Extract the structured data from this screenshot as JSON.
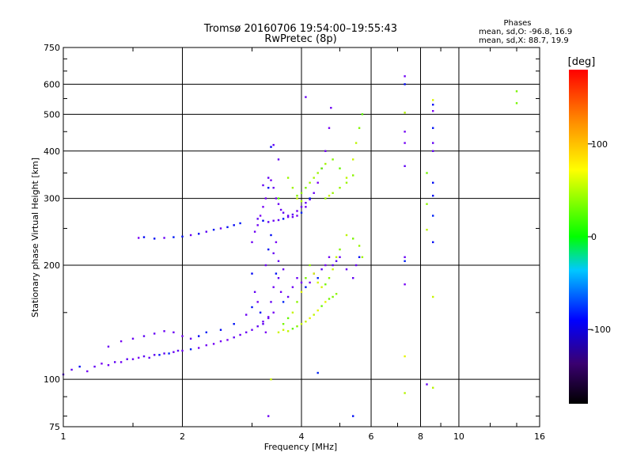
{
  "chart_data": {
    "type": "scatter",
    "title": "Tromsø 20160706 19:54:00–19:55:43",
    "subtitle": "RwPretec (8p)",
    "xlabel": "Frequency [MHz]",
    "ylabel": "Stationary phase Virtual Height [km]",
    "x_scale": "log",
    "y_scale": "log",
    "xlim": [
      1,
      16
    ],
    "ylim": [
      75,
      750
    ],
    "x_ticks": [
      1,
      2,
      4,
      6,
      8,
      10,
      16
    ],
    "x_tick_labels": [
      "1",
      "2",
      "4",
      "6",
      "8",
      "10",
      "16"
    ],
    "y_ticks": [
      75,
      100,
      200,
      300,
      400,
      500,
      600,
      750
    ],
    "y_tick_labels": [
      "75",
      "100",
      "200",
      "300",
      "400",
      "500",
      "600",
      "750"
    ],
    "grid": true,
    "colorbar": {
      "label": "[deg]",
      "range": [
        -180,
        180
      ],
      "ticks": [
        100,
        0,
        -100
      ],
      "tick_labels": [
        "100",
        "0",
        "-100"
      ],
      "colors": [
        "#000000",
        "#3a0070",
        "#0000ff",
        "#00c8ff",
        "#00ff00",
        "#ffff00",
        "#ff8800",
        "#ff0000"
      ]
    },
    "legend": {
      "heading": "Phases",
      "line1": "mean, sd,O: -96.8, 16.9",
      "line2": "mean, sd,X: 88.7, 19.9",
      "position": "top-right"
    },
    "series": [
      {
        "name": "O",
        "phase": -96.8,
        "phase_sd": 16.9,
        "points": [
          [
            1.0,
            103
          ],
          [
            1.05,
            106
          ],
          [
            1.1,
            108
          ],
          [
            1.15,
            105
          ],
          [
            1.2,
            108
          ],
          [
            1.25,
            110
          ],
          [
            1.3,
            109
          ],
          [
            1.35,
            111
          ],
          [
            1.4,
            111
          ],
          [
            1.45,
            113
          ],
          [
            1.5,
            113
          ],
          [
            1.55,
            114
          ],
          [
            1.6,
            115
          ],
          [
            1.65,
            114
          ],
          [
            1.7,
            116
          ],
          [
            1.75,
            116
          ],
          [
            1.8,
            117
          ],
          [
            1.85,
            117
          ],
          [
            1.9,
            118
          ],
          [
            1.95,
            119
          ],
          [
            2.0,
            119
          ],
          [
            2.1,
            120
          ],
          [
            2.2,
            121
          ],
          [
            2.3,
            123
          ],
          [
            2.4,
            124
          ],
          [
            2.5,
            126
          ],
          [
            2.6,
            127
          ],
          [
            2.7,
            129
          ],
          [
            2.8,
            131
          ],
          [
            2.9,
            133
          ],
          [
            3.0,
            135
          ],
          [
            3.1,
            138
          ],
          [
            3.2,
            142
          ],
          [
            3.3,
            146
          ],
          [
            3.4,
            150
          ],
          [
            1.3,
            122
          ],
          [
            1.4,
            126
          ],
          [
            1.5,
            128
          ],
          [
            1.6,
            130
          ],
          [
            1.7,
            132
          ],
          [
            1.8,
            134
          ],
          [
            1.9,
            133
          ],
          [
            2.0,
            130
          ],
          [
            2.1,
            128
          ],
          [
            2.2,
            130
          ],
          [
            2.3,
            133
          ],
          [
            2.5,
            135
          ],
          [
            2.7,
            140
          ],
          [
            2.9,
            148
          ],
          [
            3.0,
            155
          ],
          [
            1.55,
            236
          ],
          [
            1.6,
            237
          ],
          [
            1.7,
            235
          ],
          [
            1.8,
            236
          ],
          [
            1.9,
            237
          ],
          [
            2.0,
            238
          ],
          [
            2.1,
            240
          ],
          [
            2.2,
            242
          ],
          [
            2.3,
            245
          ],
          [
            2.4,
            248
          ],
          [
            2.5,
            250
          ],
          [
            2.6,
            252
          ],
          [
            2.7,
            255
          ],
          [
            2.8,
            258
          ],
          [
            3.0,
            230
          ],
          [
            3.05,
            245
          ],
          [
            3.1,
            255
          ],
          [
            3.15,
            270
          ],
          [
            3.2,
            285
          ],
          [
            3.25,
            300
          ],
          [
            3.3,
            320
          ],
          [
            3.35,
            335
          ],
          [
            3.4,
            320
          ],
          [
            3.45,
            300
          ],
          [
            3.5,
            290
          ],
          [
            3.55,
            280
          ],
          [
            3.6,
            275
          ],
          [
            3.7,
            270
          ],
          [
            3.8,
            268
          ],
          [
            3.9,
            270
          ],
          [
            4.0,
            275
          ],
          [
            4.1,
            285
          ],
          [
            4.2,
            298
          ],
          [
            4.3,
            310
          ],
          [
            4.4,
            330
          ],
          [
            4.5,
            360
          ],
          [
            4.6,
            400
          ],
          [
            4.7,
            460
          ],
          [
            4.75,
            520
          ],
          [
            3.1,
            265
          ],
          [
            3.2,
            262
          ],
          [
            3.3,
            260
          ],
          [
            3.4,
            262
          ],
          [
            3.5,
            263
          ],
          [
            3.6,
            265
          ],
          [
            3.7,
            268
          ],
          [
            3.8,
            272
          ],
          [
            3.9,
            278
          ],
          [
            4.0,
            285
          ],
          [
            4.1,
            292
          ],
          [
            4.2,
            300
          ],
          [
            3.0,
            190
          ],
          [
            3.05,
            170
          ],
          [
            3.1,
            160
          ],
          [
            3.15,
            150
          ],
          [
            3.2,
            140
          ],
          [
            3.25,
            133
          ],
          [
            3.3,
            145
          ],
          [
            3.35,
            160
          ],
          [
            3.4,
            175
          ],
          [
            3.45,
            190
          ],
          [
            3.5,
            185
          ],
          [
            3.55,
            170
          ],
          [
            3.6,
            160
          ],
          [
            3.7,
            165
          ],
          [
            3.8,
            175
          ],
          [
            3.9,
            185
          ],
          [
            4.0,
            180
          ],
          [
            4.1,
            175
          ],
          [
            4.2,
            180
          ],
          [
            4.3,
            190
          ],
          [
            4.4,
            185
          ],
          [
            4.5,
            195
          ],
          [
            4.6,
            200
          ],
          [
            4.7,
            210
          ],
          [
            4.8,
            200
          ],
          [
            4.9,
            205
          ],
          [
            5.0,
            210
          ],
          [
            5.2,
            195
          ],
          [
            5.4,
            185
          ],
          [
            5.5,
            200
          ],
          [
            5.6,
            210
          ],
          [
            3.25,
            200
          ],
          [
            3.3,
            220
          ],
          [
            3.35,
            240
          ],
          [
            3.4,
            215
          ],
          [
            3.45,
            230
          ],
          [
            3.5,
            205
          ],
          [
            3.6,
            195
          ],
          [
            4.1,
            555
          ],
          [
            3.35,
            410
          ],
          [
            3.4,
            415
          ],
          [
            3.5,
            380
          ],
          [
            3.3,
            340
          ],
          [
            3.2,
            325
          ],
          [
            7.3,
            630
          ],
          [
            7.3,
            600
          ],
          [
            7.3,
            450
          ],
          [
            7.3,
            420
          ],
          [
            7.3,
            365
          ],
          [
            7.3,
            210
          ],
          [
            7.3,
            205
          ],
          [
            7.3,
            178
          ],
          [
            8.6,
            530
          ],
          [
            8.6,
            510
          ],
          [
            8.6,
            460
          ],
          [
            8.6,
            420
          ],
          [
            8.6,
            400
          ],
          [
            8.6,
            330
          ],
          [
            8.6,
            305
          ],
          [
            8.6,
            270
          ],
          [
            8.6,
            230
          ],
          [
            8.3,
            97
          ],
          [
            3.3,
            80
          ],
          [
            5.4,
            80
          ],
          [
            4.4,
            104
          ]
        ]
      },
      {
        "name": "X",
        "phase": 88.7,
        "phase_sd": 19.9,
        "points": [
          [
            3.5,
            133
          ],
          [
            3.6,
            135
          ],
          [
            3.7,
            134
          ],
          [
            3.8,
            136
          ],
          [
            3.9,
            138
          ],
          [
            4.0,
            140
          ],
          [
            4.1,
            142
          ],
          [
            4.2,
            145
          ],
          [
            4.3,
            148
          ],
          [
            4.4,
            152
          ],
          [
            4.5,
            156
          ],
          [
            4.6,
            160
          ],
          [
            4.7,
            163
          ],
          [
            4.8,
            165
          ],
          [
            4.9,
            168
          ],
          [
            3.6,
            140
          ],
          [
            3.7,
            145
          ],
          [
            3.8,
            150
          ],
          [
            3.9,
            160
          ],
          [
            4.0,
            170
          ],
          [
            4.1,
            185
          ],
          [
            4.2,
            200
          ],
          [
            4.3,
            190
          ],
          [
            4.4,
            180
          ],
          [
            4.5,
            175
          ],
          [
            4.6,
            178
          ],
          [
            4.7,
            185
          ],
          [
            4.8,
            195
          ],
          [
            4.9,
            210
          ],
          [
            5.0,
            220
          ],
          [
            5.2,
            240
          ],
          [
            5.4,
            235
          ],
          [
            5.6,
            225
          ],
          [
            5.7,
            210
          ],
          [
            3.9,
            300
          ],
          [
            4.0,
            310
          ],
          [
            4.1,
            320
          ],
          [
            4.2,
            330
          ],
          [
            4.3,
            340
          ],
          [
            4.4,
            350
          ],
          [
            4.5,
            360
          ],
          [
            4.6,
            370
          ],
          [
            4.8,
            380
          ],
          [
            5.0,
            360
          ],
          [
            5.2,
            340
          ],
          [
            5.4,
            380
          ],
          [
            5.5,
            420
          ],
          [
            5.6,
            460
          ],
          [
            5.7,
            500
          ],
          [
            4.6,
            300
          ],
          [
            4.7,
            305
          ],
          [
            4.8,
            310
          ],
          [
            5.0,
            320
          ],
          [
            5.2,
            330
          ],
          [
            5.4,
            345
          ],
          [
            3.7,
            340
          ],
          [
            3.8,
            320
          ],
          [
            3.9,
            305
          ],
          [
            4.0,
            295
          ],
          [
            7.3,
            505
          ],
          [
            7.3,
            115
          ],
          [
            7.3,
            92
          ],
          [
            8.3,
            350
          ],
          [
            8.3,
            290
          ],
          [
            8.3,
            248
          ],
          [
            8.6,
            545
          ],
          [
            8.6,
            165
          ],
          [
            8.6,
            95
          ],
          [
            14.0,
            575
          ],
          [
            14.0,
            535
          ],
          [
            3.5,
            300
          ],
          [
            3.35,
            100
          ]
        ]
      }
    ]
  }
}
